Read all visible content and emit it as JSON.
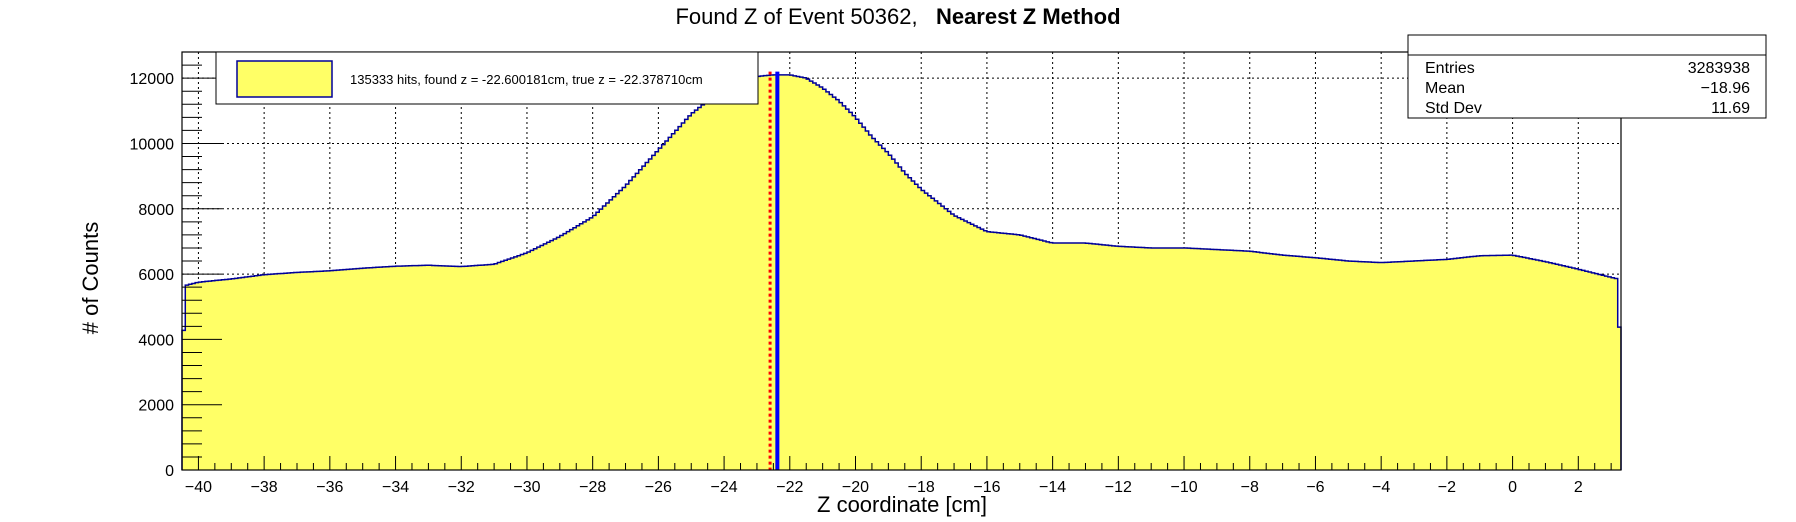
{
  "title_main": "Found Z of Event 50362,   ",
  "title_method": "Nearest Z Method",
  "stats_box": {
    "title": "",
    "rows": [
      {
        "label": "Entries",
        "value": "3283938"
      },
      {
        "label": "Mean",
        "value": "−18.96"
      },
      {
        "label": "Std Dev",
        "value": "11.69"
      }
    ]
  },
  "legend": {
    "entry": "135333 hits, found z = -22.600181cm, true z = -22.378710cm"
  },
  "colors": {
    "fill": "#ffff66",
    "outline": "#000099",
    "found_line": "#0000ff",
    "true_line": "#ff0000",
    "grid": "#000000"
  },
  "chart_data": {
    "type": "bar",
    "title": "Found Z of Event 50362,   Nearest Z Method",
    "xlabel": "Z coordinate [cm]",
    "ylabel": "# of Counts",
    "xlim": [
      -40.5,
      3.3
    ],
    "ylim": [
      0,
      12800
    ],
    "grid": true,
    "legend_position": "top-left",
    "x_ticks": [
      -40,
      -38,
      -36,
      -34,
      -32,
      -30,
      -28,
      -26,
      -24,
      -22,
      -20,
      -18,
      -16,
      -14,
      -12,
      -10,
      -8,
      -6,
      -4,
      -2,
      0,
      2
    ],
    "x_tick_labels": [
      "−40",
      "−38",
      "−36",
      "−34",
      "−32",
      "−30",
      "−28",
      "−26",
      "−24",
      "−22",
      "−20",
      "−18",
      "−16",
      "−14",
      "−12",
      "−10",
      "−8",
      "−6",
      "−4",
      "−2",
      "0",
      "2"
    ],
    "y_ticks": [
      0,
      2000,
      4000,
      6000,
      8000,
      10000,
      12000
    ],
    "y_tick_labels": [
      "0",
      "2000",
      "4000",
      "6000",
      "8000",
      "10000",
      "12000"
    ],
    "series": [
      {
        "x": [
          -40.5,
          -40.4,
          -40.0,
          -39.0,
          -38.0,
          -37.0,
          -36.0,
          -35.0,
          -34.0,
          -33.0,
          -32.0,
          -31.0,
          -30.0,
          -29.0,
          -28.0,
          -27.0,
          -26.0,
          -25.0,
          -24.0,
          -23.5,
          -23.0,
          -22.5,
          -22.0,
          -21.5,
          -21.0,
          -20.5,
          -20.0,
          -19.5,
          -19.0,
          -18.5,
          -18.0,
          -17.0,
          -16.0,
          -15.0,
          -14.0,
          -13.0,
          -12.0,
          -11.0,
          -10.0,
          -9.0,
          -8.0,
          -7.0,
          -6.0,
          -5.0,
          -4.0,
          -3.0,
          -2.0,
          -1.0,
          0.0,
          1.0,
          2.0,
          3.0,
          3.2,
          3.3
        ],
        "values": [
          2900,
          5650,
          5750,
          5850,
          5980,
          6050,
          6100,
          6180,
          6240,
          6270,
          6230,
          6300,
          6650,
          7150,
          7750,
          8700,
          9800,
          10900,
          11700,
          11950,
          12050,
          12100,
          12100,
          12000,
          11700,
          11300,
          10800,
          10200,
          9700,
          9100,
          8600,
          7800,
          7300,
          7200,
          6950,
          6950,
          6850,
          6800,
          6800,
          6750,
          6700,
          6580,
          6500,
          6400,
          6350,
          6400,
          6450,
          6560,
          6580,
          6380,
          6150,
          5900,
          5850,
          2900
        ]
      }
    ],
    "vertical_lines": [
      {
        "label": "found z",
        "x": -22.600181,
        "style": "dotted",
        "color": "#ff0000"
      },
      {
        "label": "true z",
        "x": -22.37871,
        "style": "solid",
        "color": "#0000ff"
      }
    ]
  }
}
